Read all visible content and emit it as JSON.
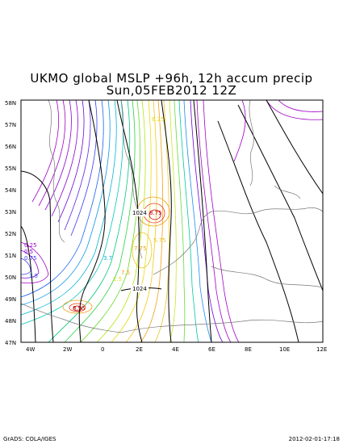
{
  "title_line1": "UKMO global MSLP +96h, 12h accum precip",
  "title_line2": "Sun,05FEB2012 12Z",
  "lat_labels": [
    "58N",
    "57N",
    "56N",
    "55N",
    "54N",
    "53N",
    "52N",
    "51N",
    "50N",
    "49N",
    "48N",
    "47N"
  ],
  "lon_labels": [
    "4W",
    "2W",
    "0",
    "2E",
    "4E",
    "6E",
    "8E",
    "10E",
    "12E"
  ],
  "pressure_labels": [
    "1024",
    "1024"
  ],
  "precip_labels": [
    "0.25",
    "0.5",
    "0.75",
    "1.5",
    "3.7",
    "7.75",
    "8.75",
    "8.95",
    "2.5",
    "7.5",
    "5.75",
    "6.25"
  ],
  "footer_left": "GrADS: COLA/IGES",
  "footer_right": "2012-02-01-17:18"
}
